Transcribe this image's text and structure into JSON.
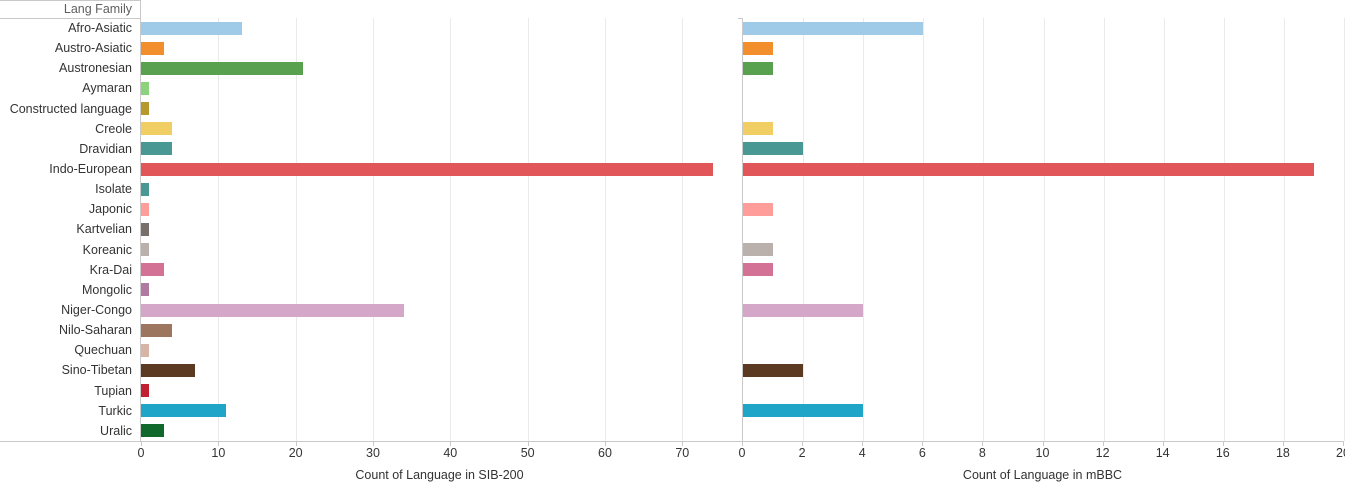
{
  "header": {
    "label": "Lang Family"
  },
  "chart_data": {
    "type": "bar",
    "orientation": "horizontal",
    "grid": true,
    "background": "#ffffff",
    "row_header": "Lang Family",
    "categories": [
      "Afro-Asiatic",
      "Austro-Asiatic",
      "Austronesian",
      "Aymaran",
      "Constructed language",
      "Creole",
      "Dravidian",
      "Indo-European",
      "Isolate",
      "Japonic",
      "Kartvelian",
      "Koreanic",
      "Kra-Dai",
      "Mongolic",
      "Niger-Congo",
      "Nilo-Saharan",
      "Quechuan",
      "Sino-Tibetan",
      "Tupian",
      "Turkic",
      "Uralic"
    ],
    "category_colors": [
      "#A0CBE8",
      "#F28E2B",
      "#59A14F",
      "#8CD17D",
      "#B6992D",
      "#F1CE63",
      "#499894",
      "#E15759",
      "#499894",
      "#FF9D9A",
      "#79706E",
      "#BAB0AC",
      "#D37295",
      "#B07AA1",
      "#D4A6C8",
      "#9D7660",
      "#D7B5A6",
      "#5B3A21",
      "#C02032",
      "#1FA5C8",
      "#10682A"
    ],
    "series": [
      {
        "name": "Count of Language in SIB-200",
        "values": [
          13,
          3,
          21,
          1,
          1,
          4,
          4,
          74,
          1,
          1,
          1,
          1,
          3,
          1,
          34,
          4,
          1,
          7,
          1,
          11,
          3
        ],
        "ticks": [
          0,
          10,
          20,
          30,
          40,
          50,
          60,
          70
        ],
        "axis_max": 77.2
      },
      {
        "name": "Count of Language in mBBC",
        "values": [
          6,
          1,
          1,
          0,
          0,
          1,
          2,
          19,
          0,
          1,
          0,
          1,
          1,
          0,
          4,
          0,
          0,
          2,
          0,
          4,
          0
        ],
        "ticks": [
          0,
          2,
          4,
          6,
          8,
          10,
          12,
          14,
          16,
          18,
          20
        ],
        "axis_max": 20
      }
    ],
    "grid_color": "#eaeaea",
    "axis_line_color": "#c9c9c9"
  }
}
